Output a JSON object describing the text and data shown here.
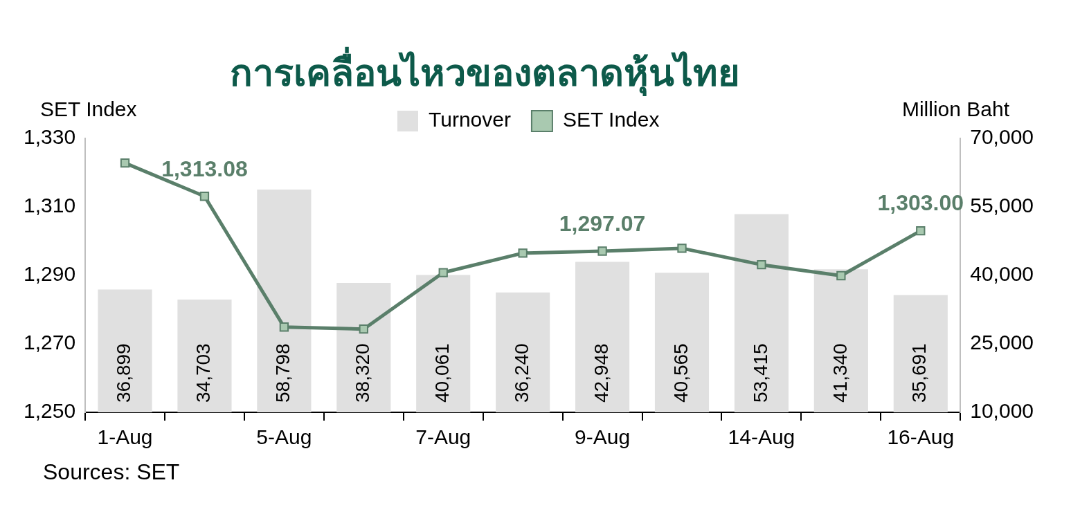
{
  "chart_data": {
    "type": "bar",
    "title": "การเคลื่อนไหวของตลาดหุ้นไทย",
    "ylabel": "SET Index",
    "y2label": "Million Baht",
    "categories": [
      "1-Aug",
      null,
      "5-Aug",
      null,
      "7-Aug",
      null,
      "9-Aug",
      null,
      "14-Aug",
      null,
      "16-Aug"
    ],
    "series": [
      {
        "name": "Turnover",
        "axis": "y2",
        "color": "#e0e0e0",
        "values": [
          36899,
          34703,
          58798,
          38320,
          40061,
          36240,
          42948,
          40565,
          53415,
          41340,
          35691
        ],
        "value_labels": [
          "36,899",
          "34,703",
          "58,798",
          "38,320",
          "40,061",
          "36,240",
          "42,948",
          "40,565",
          "53,415",
          "41,340",
          "35,691"
        ]
      },
      {
        "name": "SET Index",
        "type": "line",
        "color": "#5a7f6a",
        "marker": "square",
        "values": [
          1322.8,
          1313.08,
          1274.9,
          1274.3,
          1290.8,
          1296.5,
          1297.07,
          1297.9,
          1293.1,
          1289.9,
          1303.0
        ],
        "value_labels": [
          null,
          "1,313.08",
          null,
          null,
          null,
          null,
          "1,297.07",
          null,
          null,
          null,
          "1,303.00"
        ]
      }
    ],
    "ylim": [
      1250,
      1330
    ],
    "yticks": [
      {
        "value": 1250,
        "label": "1,250"
      },
      {
        "value": 1270,
        "label": "1,270"
      },
      {
        "value": 1290,
        "label": "1,290"
      },
      {
        "value": 1310,
        "label": "1,310"
      },
      {
        "value": 1330,
        "label": "1,330"
      }
    ],
    "y2lim": [
      10000,
      70000
    ],
    "y2ticks": [
      {
        "value": 10000,
        "label": "10,000"
      },
      {
        "value": 25000,
        "label": "25,000"
      },
      {
        "value": 40000,
        "label": "40,000"
      },
      {
        "value": 55000,
        "label": "55,000"
      },
      {
        "value": 70000,
        "label": "70,000"
      }
    ],
    "legend": "top",
    "annotations": [
      "Sources: SET"
    ]
  }
}
